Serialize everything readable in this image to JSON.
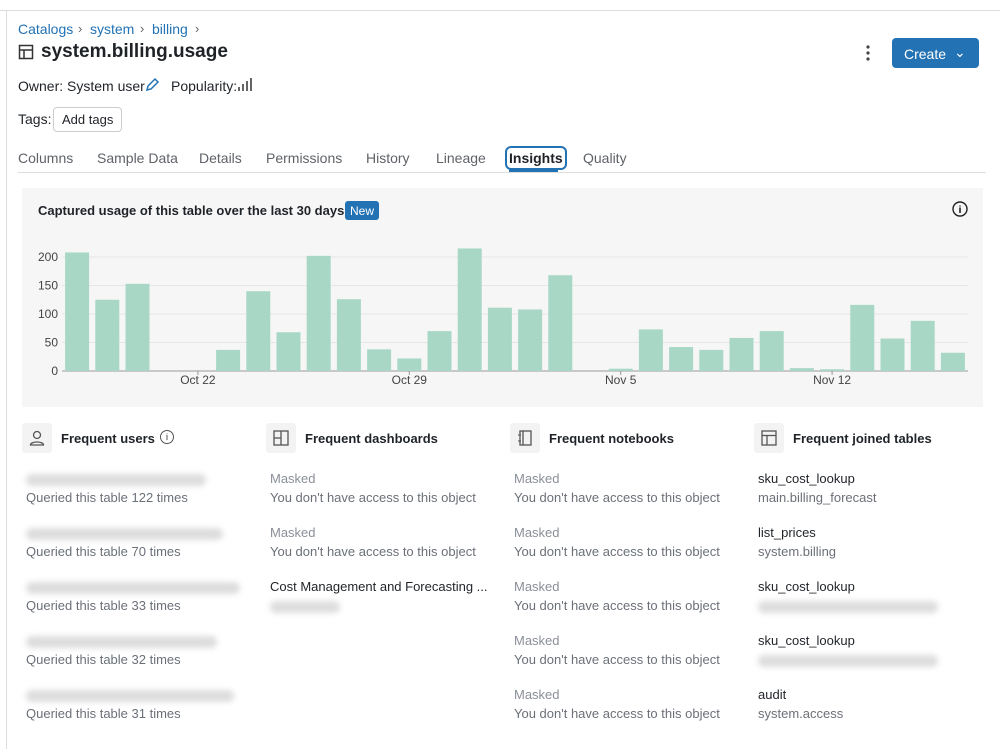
{
  "breadcrumb": [
    "Catalogs",
    "system",
    "billing"
  ],
  "header": {
    "title": "system.billing.usage",
    "owner": "Owner: System user",
    "popularity": "Popularity:",
    "create": "Create",
    "tags_label": "Tags:",
    "add_tags": "Add tags"
  },
  "tabs": {
    "items": [
      "Columns",
      "Sample Data",
      "Details",
      "Permissions",
      "History",
      "Lineage",
      "Insights",
      "Quality"
    ],
    "active": 6
  },
  "chart_data": {
    "type": "bar",
    "title": "Captured usage of this table over the last 30 days",
    "badge": "New",
    "categories": [
      null,
      null,
      null,
      null,
      "Oct 22",
      null,
      null,
      null,
      null,
      null,
      null,
      "Oct 29",
      null,
      null,
      null,
      null,
      null,
      null,
      "Nov 5",
      null,
      null,
      null,
      null,
      null,
      null,
      "Nov 12",
      null,
      null,
      null,
      null
    ],
    "values": [
      208,
      125,
      153,
      0,
      0,
      37,
      140,
      68,
      202,
      126,
      38,
      22,
      70,
      215,
      111,
      108,
      168,
      0,
      4,
      73,
      42,
      37,
      58,
      70,
      5,
      3,
      116,
      57,
      88,
      32
    ],
    "color": "#a8d8c5",
    "ylim": [
      0,
      220
    ],
    "yticks": [
      0,
      50,
      100,
      150,
      200
    ],
    "grid": true
  },
  "panels": [
    {
      "title": "Frequent users",
      "items": [
        {
          "detail": "Queried this table 122 times"
        },
        {
          "detail": "Queried this table 70 times"
        },
        {
          "detail": "Queried this table 33 times"
        },
        {
          "detail": "Queried this table 32 times"
        },
        {
          "detail": "Queried this table 31 times"
        }
      ]
    },
    {
      "title": "Frequent dashboards",
      "items": [
        {
          "name": "Masked",
          "detail": "You don't have access to this object"
        },
        {
          "name": "Masked",
          "detail": "You don't have access to this object"
        },
        {
          "name": "Cost Management and Forecasting ..."
        }
      ]
    },
    {
      "title": "Frequent notebooks",
      "items": [
        {
          "name": "Masked",
          "detail": "You don't have access to this object"
        },
        {
          "name": "Masked",
          "detail": "You don't have access to this object"
        },
        {
          "name": "Masked",
          "detail": "You don't have access to this object"
        },
        {
          "name": "Masked",
          "detail": "You don't have access to this object"
        },
        {
          "name": "Masked",
          "detail": "You don't have access to this object"
        }
      ]
    },
    {
      "title": "Frequent joined tables",
      "items": [
        {
          "name": "sku_cost_lookup",
          "detail": "main.billing_forecast"
        },
        {
          "name": "list_prices",
          "detail": "system.billing"
        },
        {
          "name": "sku_cost_lookup"
        },
        {
          "name": "sku_cost_lookup"
        },
        {
          "name": "audit",
          "detail": "system.access"
        }
      ]
    }
  ]
}
